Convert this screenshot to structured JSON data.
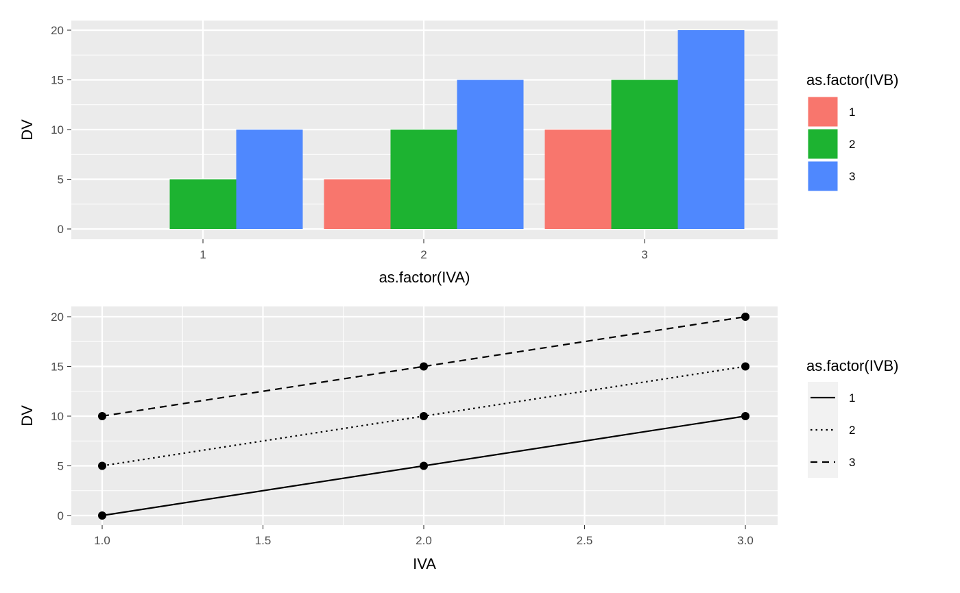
{
  "chart_data": [
    {
      "type": "bar",
      "categories": [
        "1",
        "2",
        "3"
      ],
      "series": [
        {
          "name": "1",
          "values": [
            0,
            5,
            10
          ]
        },
        {
          "name": "2",
          "values": [
            5,
            10,
            15
          ]
        },
        {
          "name": "3",
          "values": [
            10,
            15,
            20
          ]
        }
      ],
      "colors": [
        "#F8766D",
        "#1DB331",
        "#4F88FE"
      ],
      "xlabel": "as.factor(IVA)",
      "ylabel": "DV",
      "ylim": [
        0,
        20
      ],
      "yticks": [
        "0",
        "5",
        "10",
        "15",
        "20"
      ],
      "legend_title": "as.factor(IVB)",
      "legend_labels": [
        "1",
        "2",
        "3"
      ],
      "legend_position": "right",
      "grid": true
    },
    {
      "type": "line",
      "x": [
        1,
        2,
        3
      ],
      "series": [
        {
          "name": "1",
          "linetype": "solid",
          "values": [
            0,
            5,
            10
          ]
        },
        {
          "name": "2",
          "linetype": "dotted",
          "values": [
            5,
            10,
            15
          ]
        },
        {
          "name": "3",
          "linetype": "dashed",
          "values": [
            10,
            15,
            20
          ]
        }
      ],
      "xlabel": "IVA",
      "ylabel": "DV",
      "xlim": [
        1,
        3
      ],
      "ylim": [
        0,
        20
      ],
      "xticks": [
        "1.0",
        "1.5",
        "2.0",
        "2.5",
        "3.0"
      ],
      "yticks": [
        "0",
        "5",
        "10",
        "15",
        "20"
      ],
      "legend_title": "as.factor(IVB)",
      "legend_labels": [
        "1",
        "2",
        "3"
      ],
      "legend_position": "right",
      "grid": true,
      "markers": true
    }
  ]
}
